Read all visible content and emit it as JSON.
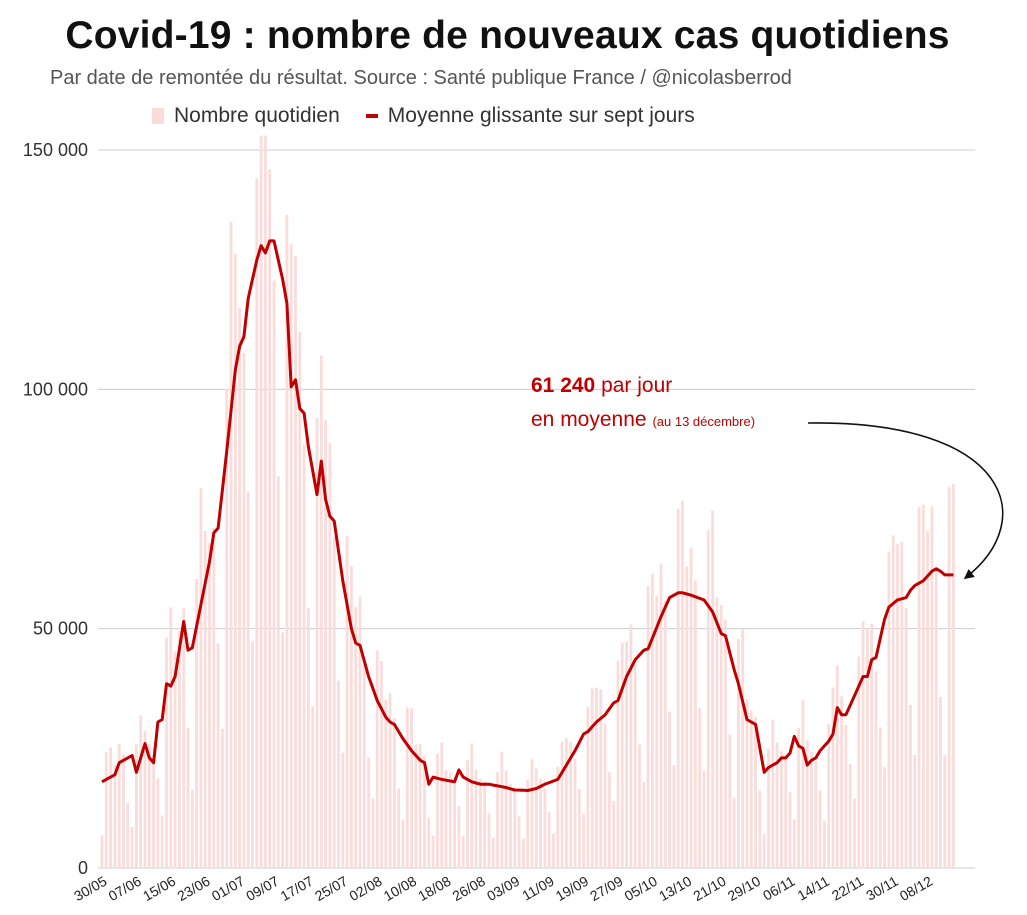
{
  "chart_data": {
    "type": "bar+line",
    "title": "Covid-19 : nombre de nouveaux cas quotidiens",
    "subtitle": "Par date de remontée du résultat. Source : Santé publique France / @nicolasberrod",
    "legend": {
      "bars": "Nombre quotidien",
      "line": "Moyenne glissante sur sept jours"
    },
    "colors": {
      "bars": "#fadcdb",
      "line": "#c00000",
      "grid": "#cccccc"
    },
    "ylim": [
      0,
      150000
    ],
    "yticks": [
      0,
      50000,
      100000,
      150000
    ],
    "ytick_labels": [
      "0",
      "50 000",
      "100 000",
      "150 000"
    ],
    "x_start": "30/05",
    "x_count": 199,
    "xtick_labels": [
      "30/05",
      "07/06",
      "15/06",
      "23/06",
      "01/07",
      "09/07",
      "17/07",
      "25/07",
      "02/08",
      "10/08",
      "18/08",
      "26/08",
      "03/09",
      "11/09",
      "19/09",
      "27/09",
      "05/10",
      "13/10",
      "21/10",
      "29/10",
      "06/11",
      "14/11",
      "22/11",
      "30/11",
      "08/12"
    ],
    "moving_average_anchors": [
      [
        0,
        18000
      ],
      [
        3,
        19500
      ],
      [
        4,
        22000
      ],
      [
        7,
        23500
      ],
      [
        8,
        20000
      ],
      [
        10,
        26000
      ],
      [
        11,
        23000
      ],
      [
        12,
        22000
      ],
      [
        13,
        30500
      ],
      [
        14,
        31000
      ],
      [
        15,
        38500
      ],
      [
        16,
        38000
      ],
      [
        17,
        40000
      ],
      [
        19,
        51500
      ],
      [
        20,
        45500
      ],
      [
        21,
        46000
      ],
      [
        23,
        55000
      ],
      [
        25,
        64000
      ],
      [
        26,
        70000
      ],
      [
        27,
        71000
      ],
      [
        29,
        87000
      ],
      [
        31,
        104000
      ],
      [
        32,
        109000
      ],
      [
        33,
        111000
      ],
      [
        34,
        119000
      ],
      [
        36,
        127000
      ],
      [
        37,
        130000
      ],
      [
        38,
        128500
      ],
      [
        39,
        131000
      ],
      [
        40,
        131000
      ],
      [
        42,
        123000
      ],
      [
        43,
        118000
      ],
      [
        44,
        100500
      ],
      [
        45,
        102000
      ],
      [
        46,
        96000
      ],
      [
        47,
        95000
      ],
      [
        48,
        88000
      ],
      [
        50,
        78000
      ],
      [
        51,
        85000
      ],
      [
        52,
        77000
      ],
      [
        53,
        73500
      ],
      [
        54,
        72500
      ],
      [
        56,
        60000
      ],
      [
        57,
        55000
      ],
      [
        58,
        50000
      ],
      [
        59,
        47000
      ],
      [
        60,
        46500
      ],
      [
        62,
        40000
      ],
      [
        64,
        35000
      ],
      [
        66,
        31500
      ],
      [
        67,
        30500
      ],
      [
        68,
        30000
      ],
      [
        70,
        27000
      ],
      [
        72,
        24500
      ],
      [
        74,
        22500
      ],
      [
        75,
        22000
      ],
      [
        76,
        17500
      ],
      [
        77,
        19000
      ],
      [
        79,
        18500
      ],
      [
        82,
        18000
      ],
      [
        83,
        20500
      ],
      [
        84,
        19000
      ],
      [
        86,
        18000
      ],
      [
        88,
        17500
      ],
      [
        90,
        17500
      ],
      [
        94,
        16800
      ],
      [
        96,
        16300
      ],
      [
        99,
        16200
      ],
      [
        101,
        16600
      ],
      [
        103,
        17500
      ],
      [
        106,
        18500
      ],
      [
        108,
        21500
      ],
      [
        110,
        24500
      ],
      [
        112,
        28000
      ],
      [
        113,
        28500
      ],
      [
        115,
        30500
      ],
      [
        117,
        32000
      ],
      [
        119,
        34500
      ],
      [
        120,
        35000
      ],
      [
        122,
        40000
      ],
      [
        124,
        43500
      ],
      [
        126,
        45500
      ],
      [
        127,
        45800
      ],
      [
        128,
        48000
      ],
      [
        130,
        52500
      ],
      [
        132,
        56500
      ],
      [
        133,
        57000
      ],
      [
        134,
        57500
      ],
      [
        135,
        57500
      ],
      [
        137,
        57000
      ],
      [
        140,
        56000
      ],
      [
        142,
        53500
      ],
      [
        144,
        49000
      ],
      [
        145,
        48500
      ],
      [
        147,
        41500
      ],
      [
        148,
        38500
      ],
      [
        150,
        31000
      ],
      [
        152,
        30000
      ],
      [
        153,
        25000
      ],
      [
        154,
        20000
      ],
      [
        155,
        21000
      ],
      [
        157,
        22000
      ],
      [
        158,
        23000
      ],
      [
        159,
        23000
      ],
      [
        160,
        24000
      ],
      [
        161,
        27500
      ],
      [
        162,
        25500
      ],
      [
        163,
        25000
      ],
      [
        164,
        21500
      ],
      [
        165,
        22500
      ],
      [
        166,
        23000
      ],
      [
        167,
        24500
      ],
      [
        169,
        26500
      ],
      [
        170,
        28000
      ],
      [
        171,
        33500
      ],
      [
        172,
        32000
      ],
      [
        173,
        32000
      ],
      [
        175,
        36000
      ],
      [
        177,
        40000
      ],
      [
        178,
        40000
      ],
      [
        179,
        43500
      ],
      [
        180,
        44000
      ],
      [
        182,
        52000
      ],
      [
        183,
        54500
      ],
      [
        185,
        56000
      ],
      [
        187,
        56500
      ],
      [
        188,
        58000
      ],
      [
        189,
        59000
      ],
      [
        190,
        59500
      ],
      [
        191,
        60000
      ],
      [
        193,
        62000
      ],
      [
        194,
        62500
      ],
      [
        195,
        62000
      ],
      [
        196,
        61240
      ]
    ],
    "annotation": {
      "value": "61 240",
      "line1_rest": "par jour",
      "line2": "en moyenne",
      "note": "(au 13 décembre)"
    }
  }
}
